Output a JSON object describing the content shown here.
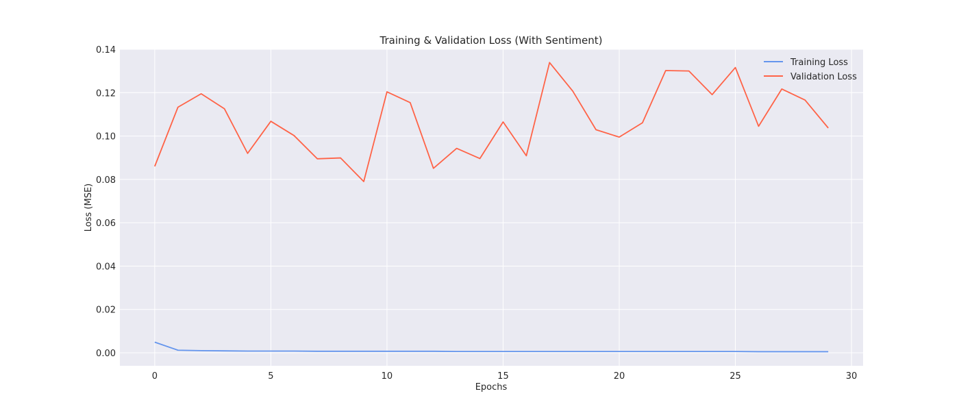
{
  "chart_data": {
    "type": "line",
    "title": "Training & Validation Loss (With Sentiment)",
    "xlabel": "Epochs",
    "ylabel": "Loss (MSE)",
    "xlim": [
      -1.5,
      30.5
    ],
    "ylim": [
      -0.006,
      0.14
    ],
    "xticks": [
      0,
      5,
      10,
      15,
      20,
      25,
      30
    ],
    "xtick_labels": [
      "0",
      "5",
      "10",
      "15",
      "20",
      "25",
      "30"
    ],
    "yticks": [
      0.0,
      0.02,
      0.04,
      0.06,
      0.08,
      0.1,
      0.12,
      0.14
    ],
    "ytick_labels": [
      "0.00",
      "0.02",
      "0.04",
      "0.06",
      "0.08",
      "0.10",
      "0.12",
      "0.14"
    ],
    "grid": true,
    "legend_position": "top-right",
    "x": [
      0,
      1,
      2,
      3,
      4,
      5,
      6,
      7,
      8,
      9,
      10,
      11,
      12,
      13,
      14,
      15,
      16,
      17,
      18,
      19,
      20,
      21,
      22,
      23,
      24,
      25,
      26,
      27,
      28,
      29
    ],
    "series": [
      {
        "name": "Training Loss",
        "color": "#6495ed",
        "values": [
          0.0049,
          0.0012,
          0.001,
          0.0009,
          0.0008,
          0.0008,
          0.0008,
          0.0007,
          0.0007,
          0.0007,
          0.0007,
          0.0007,
          0.0007,
          0.0006,
          0.0006,
          0.0006,
          0.0006,
          0.0006,
          0.0006,
          0.0006,
          0.0006,
          0.0006,
          0.0006,
          0.0006,
          0.0006,
          0.0006,
          0.0005,
          0.0005,
          0.0005,
          0.0005
        ]
      },
      {
        "name": "Validation Loss",
        "color": "#ff6347",
        "values": [
          0.086,
          0.1133,
          0.1195,
          0.1126,
          0.092,
          0.1068,
          0.1002,
          0.0895,
          0.0899,
          0.079,
          0.1204,
          0.1154,
          0.0851,
          0.0943,
          0.0896,
          0.1065,
          0.0909,
          0.1339,
          0.1207,
          0.1029,
          0.0995,
          0.1061,
          0.1302,
          0.13,
          0.1191,
          0.1316,
          0.1045,
          0.1217,
          0.1166,
          0.1037
        ]
      }
    ]
  }
}
